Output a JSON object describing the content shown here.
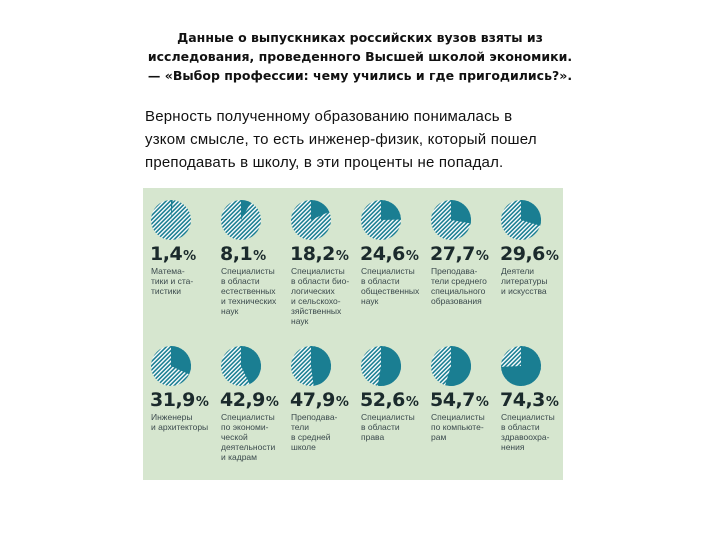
{
  "caption": {
    "lines": [
      "Данные о выпускниках российских вузов взяты из",
      "исследования, проведенного Высшей школой экономики.",
      "— «Выбор профессии: чему учились и где пригодились?»."
    ]
  },
  "body_text": {
    "lines": [
      "Верность полученному образованию понималась в",
      "узком смысле, то есть инженер-физик, который пошел",
      "преподавать в школу, в эти проценты не попадал."
    ]
  },
  "colors": {
    "background": "#d6e6cf",
    "pie_fill": "#1a7e92",
    "pie_hatch": "#ffffff"
  },
  "chart_data": {
    "type": "pie",
    "items": [
      {
        "value": 1.4,
        "value_label": "1,4",
        "label_lines": [
          "Матема-",
          "тики и ста-",
          "тистики"
        ]
      },
      {
        "value": 8.1,
        "value_label": "8,1",
        "label_lines": [
          "Специалисты",
          "в области",
          "естественных",
          "и технических",
          "наук"
        ]
      },
      {
        "value": 18.2,
        "value_label": "18,2",
        "label_lines": [
          "Специалисты",
          "в области био-",
          "логических",
          "и сельскохо-",
          "зяйственных",
          "наук"
        ]
      },
      {
        "value": 24.6,
        "value_label": "24,6",
        "label_lines": [
          "Специалисты",
          "в области",
          "общественных",
          "наук"
        ]
      },
      {
        "value": 27.7,
        "value_label": "27,7",
        "label_lines": [
          "Преподава-",
          "тели среднего",
          "специального",
          "образования"
        ]
      },
      {
        "value": 29.6,
        "value_label": "29,6",
        "label_lines": [
          "Деятели",
          "литературы",
          "и искусства"
        ]
      },
      {
        "value": 31.9,
        "value_label": "31,9",
        "label_lines": [
          "Инженеры",
          "и архитекторы"
        ]
      },
      {
        "value": 42.9,
        "value_label": "42,9",
        "label_lines": [
          "Специалисты",
          "по экономи-",
          "ческой",
          "деятельности",
          "и кадрам"
        ]
      },
      {
        "value": 47.9,
        "value_label": "47,9",
        "label_lines": [
          "Преподава-",
          "тели",
          "в средней",
          "школе"
        ]
      },
      {
        "value": 52.6,
        "value_label": "52,6",
        "label_lines": [
          "Специалисты",
          "в области",
          "права"
        ]
      },
      {
        "value": 54.7,
        "value_label": "54,7",
        "label_lines": [
          "Специалисты",
          "по компьюте-",
          "рам"
        ]
      },
      {
        "value": 74.3,
        "value_label": "74,3",
        "label_lines": [
          "Специалисты",
          "в области",
          "здравоохра-",
          "нения"
        ]
      }
    ],
    "unit_sign": "%"
  }
}
